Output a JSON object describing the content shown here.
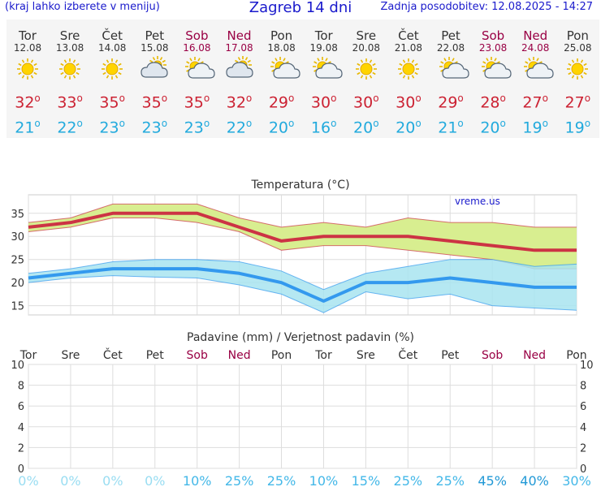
{
  "header": {
    "menu_note": "(kraj lahko izberete v meniju)",
    "title": "Zagreb 14 dni",
    "updated": "Zadnja posodobitev: 12.08.2025 - 14:27"
  },
  "days": [
    {
      "name": "Tor",
      "date": "12.08",
      "weekend": false,
      "icon": "sun-icon",
      "hi": "32",
      "lo": "21"
    },
    {
      "name": "Sre",
      "date": "13.08",
      "weekend": false,
      "icon": "sun-icon",
      "hi": "33",
      "lo": "22"
    },
    {
      "name": "Čet",
      "date": "14.08",
      "weekend": false,
      "icon": "sun-icon",
      "hi": "35",
      "lo": "23"
    },
    {
      "name": "Pet",
      "date": "15.08",
      "weekend": false,
      "icon": "cloudy-sun-icon",
      "hi": "35",
      "lo": "23"
    },
    {
      "name": "Sob",
      "date": "16.08",
      "weekend": true,
      "icon": "partly-cloudy-icon",
      "hi": "35",
      "lo": "23"
    },
    {
      "name": "Ned",
      "date": "17.08",
      "weekend": true,
      "icon": "cloudy-sun-icon",
      "hi": "32",
      "lo": "22"
    },
    {
      "name": "Pon",
      "date": "18.08",
      "weekend": false,
      "icon": "partly-cloudy-icon",
      "hi": "29",
      "lo": "20"
    },
    {
      "name": "Tor",
      "date": "19.08",
      "weekend": false,
      "icon": "partly-cloudy-icon",
      "hi": "30",
      "lo": "16"
    },
    {
      "name": "Sre",
      "date": "20.08",
      "weekend": false,
      "icon": "sun-icon",
      "hi": "30",
      "lo": "20"
    },
    {
      "name": "Čet",
      "date": "21.08",
      "weekend": false,
      "icon": "sun-icon",
      "hi": "30",
      "lo": "20"
    },
    {
      "name": "Pet",
      "date": "22.08",
      "weekend": false,
      "icon": "partly-cloudy-icon",
      "hi": "29",
      "lo": "21"
    },
    {
      "name": "Sob",
      "date": "23.08",
      "weekend": true,
      "icon": "partly-cloudy-icon",
      "hi": "28",
      "lo": "20"
    },
    {
      "name": "Ned",
      "date": "24.08",
      "weekend": true,
      "icon": "partly-cloudy-icon",
      "hi": "27",
      "lo": "19"
    },
    {
      "name": "Pon",
      "date": "25.08",
      "weekend": false,
      "icon": "sun-icon",
      "hi": "27",
      "lo": "19"
    }
  ],
  "chart_data": [
    {
      "type": "line",
      "title": "Temperatura (°C)",
      "watermark": "vreme.us",
      "categories": [
        "Tor",
        "Sre",
        "Čet",
        "Pet",
        "Sob",
        "Ned",
        "Pon",
        "Tor",
        "Sre",
        "Čet",
        "Pet",
        "Sob",
        "Ned",
        "Pon"
      ],
      "ylim": [
        13,
        39
      ],
      "yticks": [
        15,
        20,
        25,
        30,
        35
      ],
      "grid": true,
      "series": [
        {
          "values": [
            32,
            33,
            35,
            35,
            35,
            32,
            29,
            30,
            30,
            30,
            29,
            28,
            27,
            27
          ],
          "band_upper": [
            33,
            34,
            37,
            37,
            37,
            34,
            32,
            33,
            32,
            34,
            33,
            33,
            32,
            32
          ],
          "band_lower": [
            31,
            32,
            34,
            34,
            33,
            31,
            27,
            28,
            28,
            27,
            26,
            25,
            23,
            23
          ],
          "color": "#cc3344",
          "band_color": "#d8ee90"
        },
        {
          "values": [
            21,
            22,
            23,
            23,
            23,
            22,
            20,
            16,
            20,
            20,
            21,
            20,
            19,
            19
          ],
          "band_upper": [
            22,
            23,
            24.5,
            25,
            25,
            24.5,
            22.5,
            18.5,
            22,
            23.5,
            25,
            25,
            23.5,
            24
          ],
          "band_lower": [
            20,
            21,
            21.5,
            21.2,
            21,
            19.5,
            17.5,
            13.5,
            18,
            16.5,
            17.5,
            15,
            14.5,
            14
          ],
          "color": "#3399ee",
          "band_color": "#a8e4f0"
        }
      ]
    },
    {
      "type": "bar",
      "title": "Padavine (mm) / Verjetnost padavin (%)",
      "categories": [
        "Tor",
        "Sre",
        "Čet",
        "Pet",
        "Sob",
        "Ned",
        "Pon",
        "Tor",
        "Sre",
        "Čet",
        "Pet",
        "Sob",
        "Ned",
        "Pon"
      ],
      "weekend": [
        false,
        false,
        false,
        false,
        true,
        true,
        false,
        false,
        false,
        false,
        false,
        true,
        true,
        false
      ],
      "ylim": [
        0,
        10
      ],
      "yticks": [
        0,
        2,
        4,
        6,
        8,
        10
      ],
      "precip_mm": [
        0,
        0,
        0,
        0,
        0,
        0,
        0,
        0,
        0,
        0,
        0,
        0,
        0,
        0
      ],
      "probability": [
        "0%",
        "0%",
        "0%",
        "0%",
        "10%",
        "25%",
        "25%",
        "10%",
        "15%",
        "25%",
        "25%",
        "45%",
        "40%",
        "30%"
      ],
      "probability_values": [
        0,
        0,
        0,
        0,
        10,
        25,
        25,
        10,
        15,
        25,
        25,
        45,
        40,
        30
      ]
    }
  ]
}
